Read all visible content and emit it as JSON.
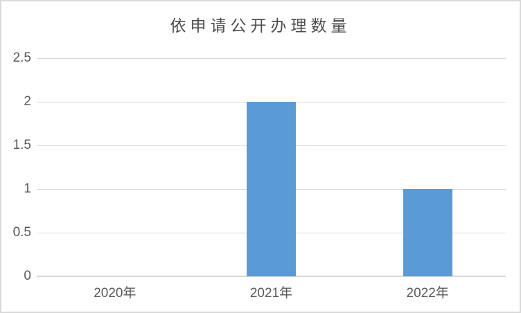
{
  "chart_data": {
    "type": "bar",
    "title": "依申请公开办理数量",
    "categories": [
      "2020年",
      "2021年",
      "2022年"
    ],
    "values": [
      0,
      2,
      1
    ],
    "ylim": [
      0,
      2.5
    ],
    "ytick_step": 0.5,
    "ytick_labels": [
      "0",
      "0.5",
      "1",
      "1.5",
      "2",
      "2.5"
    ],
    "xlabel": "",
    "ylabel": "",
    "grid": true,
    "legend_position": "none",
    "colors": {
      "bar": "#5b9bd5",
      "gridline": "#d9d9d9",
      "axis_line": "#d6d6d6",
      "tick_label": "#595959",
      "title": "#4d4d4d",
      "frame_border": "#d9d9d9",
      "background": "#ffffff"
    }
  }
}
